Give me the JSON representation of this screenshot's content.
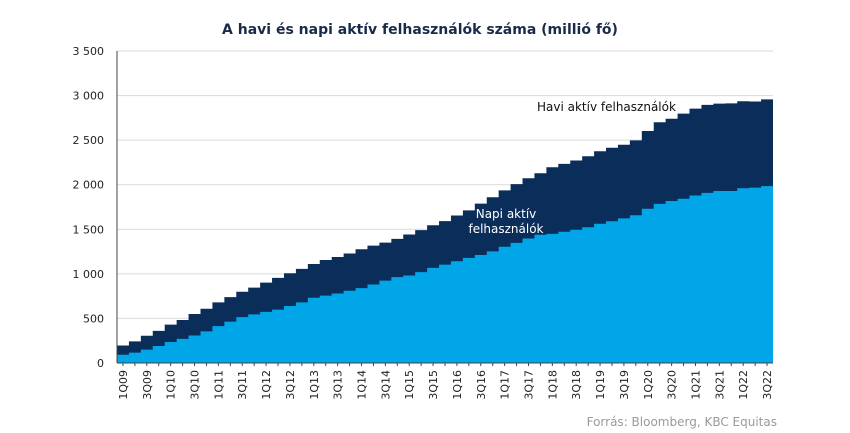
{
  "chart_data": {
    "type": "area",
    "title": "A havi és napi aktív felhasználók száma (millió fő)",
    "source": "Forrás: Bloomberg, KBC Equitas",
    "x": [
      "1Q09",
      "2Q09",
      "3Q09",
      "4Q09",
      "1Q10",
      "2Q10",
      "3Q10",
      "4Q10",
      "1Q11",
      "2Q11",
      "3Q11",
      "4Q11",
      "1Q12",
      "2Q12",
      "3Q12",
      "4Q12",
      "1Q13",
      "2Q13",
      "3Q13",
      "4Q13",
      "1Q14",
      "2Q14",
      "3Q14",
      "4Q14",
      "1Q15",
      "2Q15",
      "3Q15",
      "4Q15",
      "1Q16",
      "2Q16",
      "3Q16",
      "4Q16",
      "1Q17",
      "2Q17",
      "3Q17",
      "4Q17",
      "1Q18",
      "2Q18",
      "3Q18",
      "4Q18",
      "1Q19",
      "2Q19",
      "3Q19",
      "4Q19",
      "1Q20",
      "2Q20",
      "3Q20",
      "4Q20",
      "1Q21",
      "2Q21",
      "3Q21",
      "4Q21",
      "1Q22",
      "2Q22",
      "3Q22"
    ],
    "x_tick_labels": [
      "1Q09",
      "3Q09",
      "1Q10",
      "3Q10",
      "1Q11",
      "3Q11",
      "1Q12",
      "3Q12",
      "1Q13",
      "3Q13",
      "1Q14",
      "3Q14",
      "1Q15",
      "3Q15",
      "1Q16",
      "3Q16",
      "1Q17",
      "3Q17",
      "1Q18",
      "3Q18",
      "1Q19",
      "3Q19",
      "1Q20",
      "3Q20",
      "1Q21",
      "3Q21",
      "1Q22",
      "3Q22"
    ],
    "y_ticks": [
      "0",
      "500",
      "1 000",
      "1 500",
      "2 000",
      "2 500",
      "3 000",
      "3 500"
    ],
    "ylim": [
      0,
      3500
    ],
    "grid": true,
    "series": [
      {
        "name": "Havi aktív felhasználók",
        "color": "#0b2d5a",
        "values": [
          197,
          242,
          305,
          360,
          431,
          482,
          550,
          608,
          680,
          739,
          800,
          845,
          901,
          955,
          1007,
          1056,
          1110,
          1155,
          1189,
          1228,
          1276,
          1317,
          1350,
          1393,
          1441,
          1490,
          1545,
          1591,
          1654,
          1712,
          1788,
          1860,
          1936,
          2006,
          2072,
          2129,
          2196,
          2234,
          2271,
          2320,
          2375,
          2414,
          2449,
          2498,
          2603,
          2701,
          2740,
          2797,
          2853,
          2895,
          2910,
          2912,
          2936,
          2934,
          2958
        ]
      },
      {
        "name": "Napi aktív felhasználók",
        "color": "#00a6e8",
        "values": [
          92,
          116,
          150,
          190,
          235,
          270,
          308,
          355,
          413,
          464,
          515,
          545,
          573,
          599,
          640,
          680,
          732,
          756,
          780,
          810,
          840,
          880,
          924,
          964,
          982,
          1019,
          1067,
          1104,
          1142,
          1179,
          1211,
          1252,
          1304,
          1348,
          1397,
          1439,
          1449,
          1472,
          1495,
          1523,
          1562,
          1590,
          1623,
          1657,
          1730,
          1785,
          1818,
          1843,
          1879,
          1908,
          1930,
          1929,
          1960,
          1968,
          1984
        ]
      }
    ],
    "annotations": [
      {
        "text": "Havi aktív felhasználók",
        "series": 0
      },
      {
        "text": "Napi aktív",
        "series": 1
      },
      {
        "text": "felhasználók",
        "series": 1
      }
    ]
  }
}
